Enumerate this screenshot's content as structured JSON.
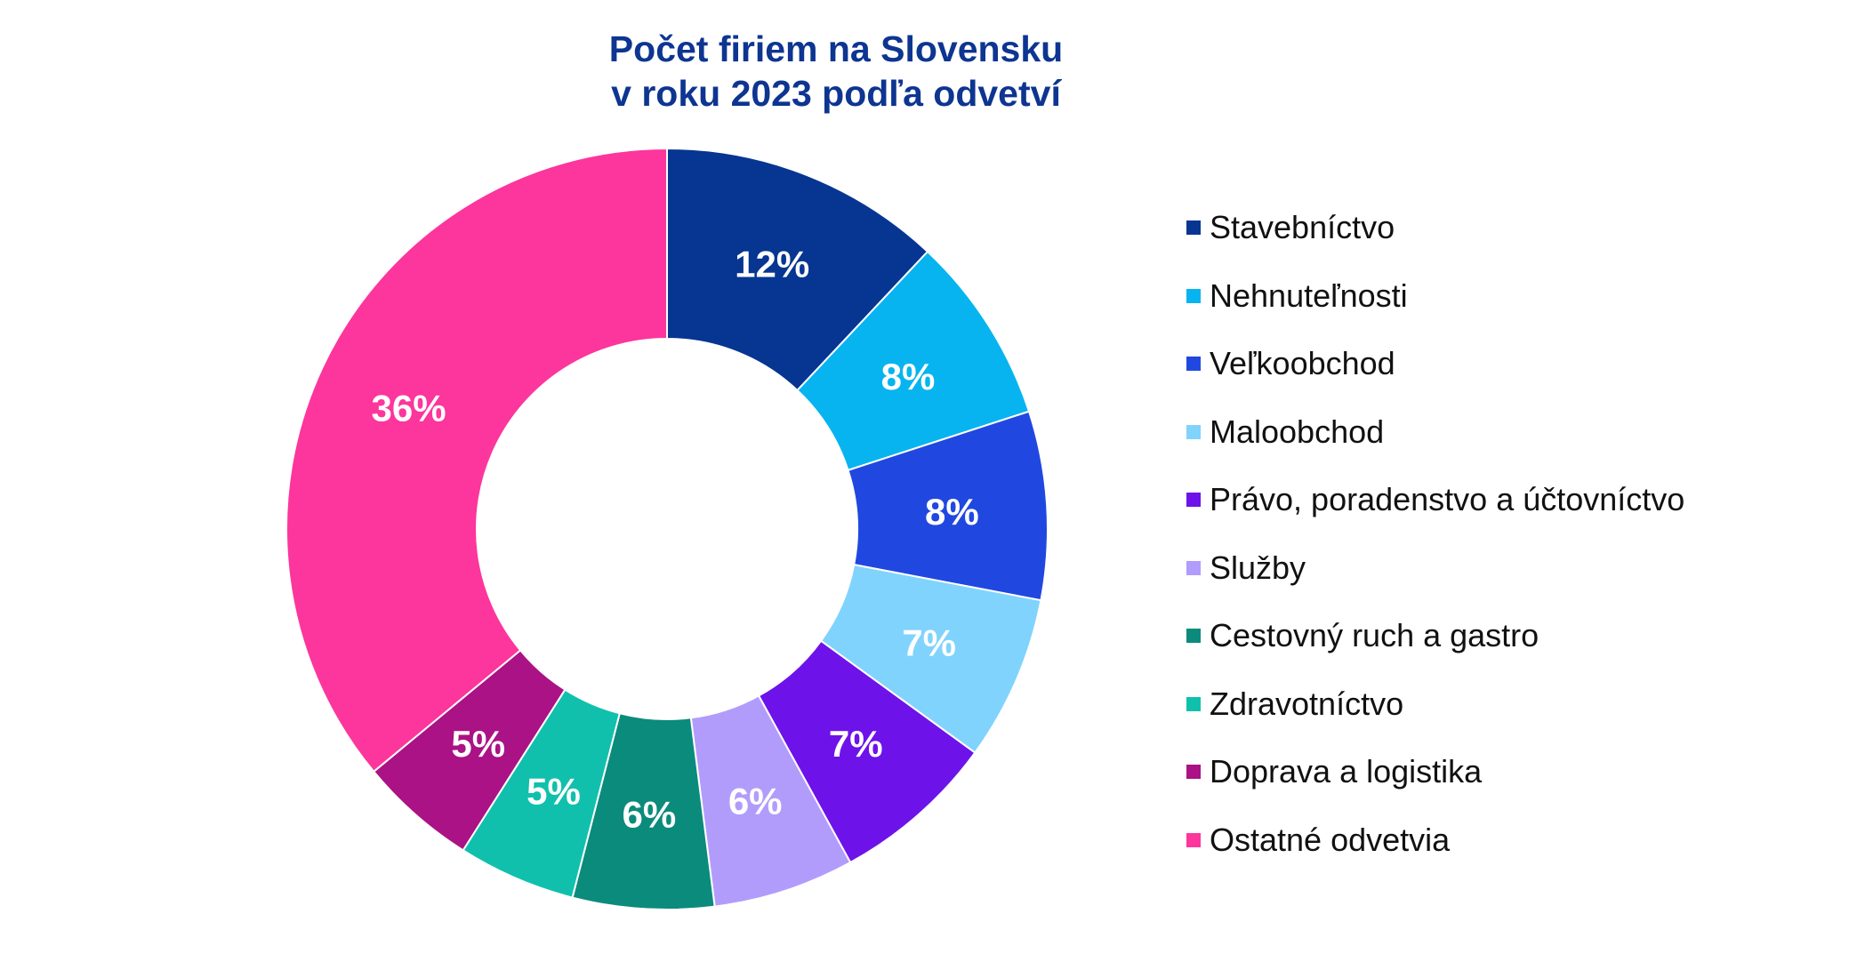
{
  "chart_data": {
    "type": "pie",
    "variant": "donut",
    "title": [
      "Počet firiem na Slovensku",
      "v roku 2023 podľa odvetví"
    ],
    "unit": "%",
    "legend_position": "right",
    "start": "12 o'clock, clockwise",
    "slices": [
      {
        "name": "Stavebníctvo",
        "value": 12,
        "label": "12%",
        "color": "#063592"
      },
      {
        "name": "Nehnuteľnosti",
        "value": 8,
        "label": "8%",
        "color": "#07b4f0"
      },
      {
        "name": "Veľkoobchod",
        "value": 8,
        "label": "8%",
        "color": "#2048e0"
      },
      {
        "name": "Maloobchod",
        "value": 7,
        "label": "7%",
        "color": "#80d3fc"
      },
      {
        "name": "Právo, poradenstvo a účtovníctvo",
        "value": 7,
        "label": "7%",
        "color": "#6e12ea"
      },
      {
        "name": "Služby",
        "value": 6,
        "label": "6%",
        "color": "#b29cfb"
      },
      {
        "name": "Cestovný ruch a gastro",
        "value": 6,
        "label": "6%",
        "color": "#0b8b7c"
      },
      {
        "name": "Zdravotníctvo",
        "value": 5,
        "label": "5%",
        "color": "#11c0ac"
      },
      {
        "name": "Doprava a logistika",
        "value": 5,
        "label": "5%",
        "color": "#aa1285"
      },
      {
        "name": "Ostatné odvetvia",
        "value": 36,
        "label": "36%",
        "color": "#fc369c"
      }
    ]
  }
}
